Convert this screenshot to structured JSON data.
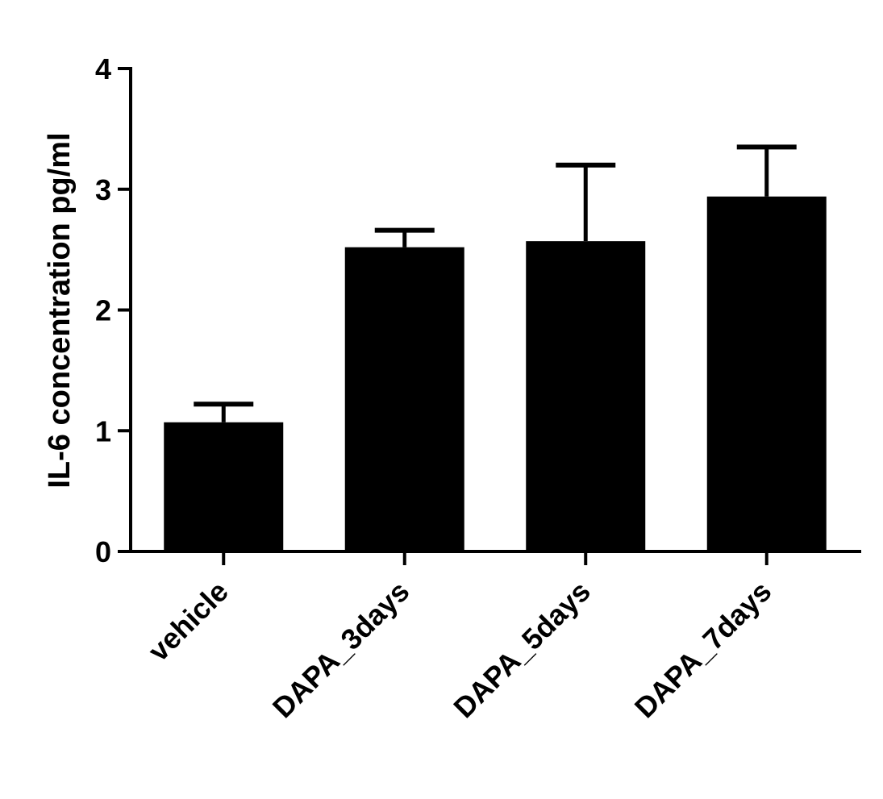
{
  "chart_data": {
    "type": "bar",
    "title": "",
    "xlabel": "",
    "ylabel": "IL-6 concentration pg/ml",
    "categories": [
      "vehicle",
      "DAPA_3days",
      "DAPA_5days",
      "DAPA_7days"
    ],
    "values": [
      1.07,
      2.52,
      2.57,
      2.94
    ],
    "error_upper": [
      1.22,
      2.66,
      3.2,
      3.35
    ],
    "ylim": [
      0,
      4
    ],
    "yticks": [
      0,
      1,
      2,
      3,
      4
    ],
    "ytick_labels": [
      "0",
      "1",
      "2",
      "3",
      "4"
    ],
    "grid": false,
    "legend": "none",
    "bar_color": "#000000"
  }
}
